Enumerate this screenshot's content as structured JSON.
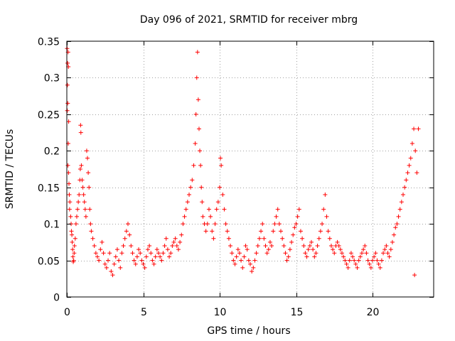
{
  "chart_data": {
    "type": "scatter",
    "marker": "+",
    "title": "Day 096 of 2021, SRMTID for receiver mbrg",
    "xlabel": "GPS time / hours",
    "ylabel": "SRMTID / TECUs",
    "xlim": [
      0,
      24
    ],
    "ylim": [
      0,
      0.35
    ],
    "grid": true,
    "xticks": [
      0,
      5,
      10,
      15,
      20
    ],
    "xtick_labels": [
      "0",
      "5",
      "10",
      "15",
      "20"
    ],
    "yticks": [
      0,
      0.05,
      0.1,
      0.15,
      0.2,
      0.25,
      0.3,
      0.35
    ],
    "ytick_labels": [
      "0",
      "0.05",
      "0.1",
      "0.15",
      "0.2",
      "0.25",
      "0.3",
      "0.35"
    ],
    "series_color": "#ff0000",
    "series": [
      {
        "name": "SRMTID",
        "points": [
          [
            0.02,
            0.34
          ],
          [
            0.05,
            0.32
          ],
          [
            0.08,
            0.335
          ],
          [
            0.1,
            0.315
          ],
          [
            0.04,
            0.29
          ],
          [
            0.06,
            0.265
          ],
          [
            0.03,
            0.255
          ],
          [
            0.12,
            0.24
          ],
          [
            0.09,
            0.21
          ],
          [
            0.07,
            0.18
          ],
          [
            0.11,
            0.17
          ],
          [
            0.14,
            0.155
          ],
          [
            0.16,
            0.14
          ],
          [
            0.2,
            0.13
          ],
          [
            0.18,
            0.12
          ],
          [
            0.25,
            0.11
          ],
          [
            0.28,
            0.1
          ],
          [
            0.3,
            0.09
          ],
          [
            0.33,
            0.085
          ],
          [
            0.35,
            0.075
          ],
          [
            0.38,
            0.065
          ],
          [
            0.4,
            0.055
          ],
          [
            0.42,
            0.048
          ],
          [
            0.45,
            0.05
          ],
          [
            0.48,
            0.06
          ],
          [
            0.5,
            0.07
          ],
          [
            0.55,
            0.08
          ],
          [
            0.6,
            0.1
          ],
          [
            0.65,
            0.11
          ],
          [
            0.7,
            0.12
          ],
          [
            0.75,
            0.13
          ],
          [
            0.8,
            0.14
          ],
          [
            0.85,
            0.16
          ],
          [
            0.88,
            0.175
          ],
          [
            0.9,
            0.235
          ],
          [
            0.92,
            0.225
          ],
          [
            0.95,
            0.18
          ],
          [
            1.0,
            0.16
          ],
          [
            1.05,
            0.15
          ],
          [
            1.1,
            0.14
          ],
          [
            1.15,
            0.13
          ],
          [
            1.2,
            0.12
          ],
          [
            1.25,
            0.11
          ],
          [
            1.3,
            0.2
          ],
          [
            1.35,
            0.19
          ],
          [
            1.4,
            0.17
          ],
          [
            1.45,
            0.15
          ],
          [
            1.5,
            0.12
          ],
          [
            1.55,
            0.1
          ],
          [
            1.6,
            0.09
          ],
          [
            1.7,
            0.08
          ],
          [
            1.8,
            0.07
          ],
          [
            1.9,
            0.06
          ],
          [
            2.0,
            0.055
          ],
          [
            2.1,
            0.05
          ],
          [
            2.2,
            0.065
          ],
          [
            2.3,
            0.075
          ],
          [
            2.4,
            0.06
          ],
          [
            2.5,
            0.045
          ],
          [
            2.6,
            0.04
          ],
          [
            2.7,
            0.05
          ],
          [
            2.8,
            0.06
          ],
          [
            2.9,
            0.035
          ],
          [
            3.0,
            0.03
          ],
          [
            3.1,
            0.045
          ],
          [
            3.2,
            0.055
          ],
          [
            3.3,
            0.065
          ],
          [
            3.4,
            0.05
          ],
          [
            3.5,
            0.04
          ],
          [
            3.6,
            0.06
          ],
          [
            3.7,
            0.07
          ],
          [
            3.8,
            0.08
          ],
          [
            3.9,
            0.09
          ],
          [
            4.0,
            0.1
          ],
          [
            4.1,
            0.085
          ],
          [
            4.2,
            0.07
          ],
          [
            4.3,
            0.06
          ],
          [
            4.4,
            0.05
          ],
          [
            4.5,
            0.045
          ],
          [
            4.6,
            0.055
          ],
          [
            4.7,
            0.065
          ],
          [
            4.8,
            0.06
          ],
          [
            4.9,
            0.05
          ],
          [
            5.0,
            0.045
          ],
          [
            5.1,
            0.04
          ],
          [
            5.2,
            0.055
          ],
          [
            5.3,
            0.065
          ],
          [
            5.4,
            0.07
          ],
          [
            5.5,
            0.06
          ],
          [
            5.6,
            0.05
          ],
          [
            5.7,
            0.045
          ],
          [
            5.8,
            0.055
          ],
          [
            5.9,
            0.065
          ],
          [
            6.0,
            0.06
          ],
          [
            6.1,
            0.055
          ],
          [
            6.2,
            0.05
          ],
          [
            6.3,
            0.06
          ],
          [
            6.4,
            0.07
          ],
          [
            6.5,
            0.08
          ],
          [
            6.6,
            0.065
          ],
          [
            6.7,
            0.055
          ],
          [
            6.8,
            0.06
          ],
          [
            6.9,
            0.07
          ],
          [
            7.0,
            0.075
          ],
          [
            7.1,
            0.08
          ],
          [
            7.2,
            0.07
          ],
          [
            7.3,
            0.065
          ],
          [
            7.4,
            0.075
          ],
          [
            7.5,
            0.085
          ],
          [
            7.6,
            0.1
          ],
          [
            7.7,
            0.11
          ],
          [
            7.8,
            0.12
          ],
          [
            7.9,
            0.13
          ],
          [
            8.0,
            0.14
          ],
          [
            8.1,
            0.15
          ],
          [
            8.2,
            0.16
          ],
          [
            8.3,
            0.18
          ],
          [
            8.4,
            0.21
          ],
          [
            8.45,
            0.25
          ],
          [
            8.5,
            0.3
          ],
          [
            8.55,
            0.335
          ],
          [
            8.6,
            0.27
          ],
          [
            8.65,
            0.23
          ],
          [
            8.7,
            0.2
          ],
          [
            8.75,
            0.18
          ],
          [
            8.8,
            0.15
          ],
          [
            8.85,
            0.13
          ],
          [
            8.9,
            0.11
          ],
          [
            9.0,
            0.1
          ],
          [
            9.1,
            0.09
          ],
          [
            9.2,
            0.1
          ],
          [
            9.3,
            0.12
          ],
          [
            9.4,
            0.11
          ],
          [
            9.5,
            0.09
          ],
          [
            9.6,
            0.08
          ],
          [
            9.7,
            0.1
          ],
          [
            9.8,
            0.12
          ],
          [
            9.9,
            0.13
          ],
          [
            10.0,
            0.15
          ],
          [
            10.05,
            0.19
          ],
          [
            10.1,
            0.18
          ],
          [
            10.2,
            0.14
          ],
          [
            10.3,
            0.12
          ],
          [
            10.4,
            0.1
          ],
          [
            10.5,
            0.09
          ],
          [
            10.6,
            0.08
          ],
          [
            10.7,
            0.07
          ],
          [
            10.8,
            0.06
          ],
          [
            10.9,
            0.05
          ],
          [
            11.0,
            0.045
          ],
          [
            11.1,
            0.055
          ],
          [
            11.2,
            0.065
          ],
          [
            11.3,
            0.06
          ],
          [
            11.4,
            0.05
          ],
          [
            11.5,
            0.04
          ],
          [
            11.6,
            0.055
          ],
          [
            11.7,
            0.07
          ],
          [
            11.8,
            0.065
          ],
          [
            11.9,
            0.05
          ],
          [
            12.0,
            0.045
          ],
          [
            12.1,
            0.035
          ],
          [
            12.2,
            0.04
          ],
          [
            12.3,
            0.05
          ],
          [
            12.4,
            0.06
          ],
          [
            12.5,
            0.07
          ],
          [
            12.6,
            0.08
          ],
          [
            12.7,
            0.09
          ],
          [
            12.8,
            0.1
          ],
          [
            12.9,
            0.08
          ],
          [
            13.0,
            0.07
          ],
          [
            13.1,
            0.06
          ],
          [
            13.2,
            0.065
          ],
          [
            13.3,
            0.075
          ],
          [
            13.4,
            0.07
          ],
          [
            13.5,
            0.09
          ],
          [
            13.6,
            0.1
          ],
          [
            13.7,
            0.11
          ],
          [
            13.8,
            0.12
          ],
          [
            13.9,
            0.1
          ],
          [
            14.0,
            0.09
          ],
          [
            14.1,
            0.08
          ],
          [
            14.2,
            0.07
          ],
          [
            14.3,
            0.06
          ],
          [
            14.4,
            0.05
          ],
          [
            14.5,
            0.055
          ],
          [
            14.6,
            0.065
          ],
          [
            14.7,
            0.075
          ],
          [
            14.8,
            0.085
          ],
          [
            14.9,
            0.095
          ],
          [
            15.0,
            0.1
          ],
          [
            15.1,
            0.11
          ],
          [
            15.2,
            0.12
          ],
          [
            15.3,
            0.09
          ],
          [
            15.4,
            0.08
          ],
          [
            15.5,
            0.07
          ],
          [
            15.6,
            0.06
          ],
          [
            15.7,
            0.055
          ],
          [
            15.8,
            0.065
          ],
          [
            15.9,
            0.07
          ],
          [
            16.0,
            0.075
          ],
          [
            16.1,
            0.065
          ],
          [
            16.2,
            0.055
          ],
          [
            16.3,
            0.06
          ],
          [
            16.4,
            0.07
          ],
          [
            16.5,
            0.08
          ],
          [
            16.6,
            0.09
          ],
          [
            16.7,
            0.1
          ],
          [
            16.8,
            0.12
          ],
          [
            16.9,
            0.14
          ],
          [
            17.0,
            0.11
          ],
          [
            17.1,
            0.09
          ],
          [
            17.2,
            0.08
          ],
          [
            17.3,
            0.07
          ],
          [
            17.4,
            0.065
          ],
          [
            17.5,
            0.06
          ],
          [
            17.6,
            0.07
          ],
          [
            17.7,
            0.075
          ],
          [
            17.8,
            0.07
          ],
          [
            17.9,
            0.065
          ],
          [
            18.0,
            0.06
          ],
          [
            18.1,
            0.055
          ],
          [
            18.2,
            0.05
          ],
          [
            18.3,
            0.045
          ],
          [
            18.4,
            0.04
          ],
          [
            18.5,
            0.05
          ],
          [
            18.6,
            0.06
          ],
          [
            18.7,
            0.055
          ],
          [
            18.8,
            0.05
          ],
          [
            18.9,
            0.045
          ],
          [
            19.0,
            0.04
          ],
          [
            19.1,
            0.05
          ],
          [
            19.2,
            0.055
          ],
          [
            19.3,
            0.06
          ],
          [
            19.4,
            0.065
          ],
          [
            19.5,
            0.07
          ],
          [
            19.6,
            0.06
          ],
          [
            19.7,
            0.05
          ],
          [
            19.8,
            0.045
          ],
          [
            19.9,
            0.04
          ],
          [
            20.0,
            0.05
          ],
          [
            20.1,
            0.055
          ],
          [
            20.2,
            0.06
          ],
          [
            20.3,
            0.05
          ],
          [
            20.4,
            0.045
          ],
          [
            20.5,
            0.04
          ],
          [
            20.6,
            0.05
          ],
          [
            20.7,
            0.06
          ],
          [
            20.8,
            0.065
          ],
          [
            20.9,
            0.07
          ],
          [
            21.0,
            0.06
          ],
          [
            21.1,
            0.055
          ],
          [
            21.2,
            0.065
          ],
          [
            21.3,
            0.075
          ],
          [
            21.4,
            0.085
          ],
          [
            21.5,
            0.095
          ],
          [
            21.6,
            0.1
          ],
          [
            21.7,
            0.11
          ],
          [
            21.8,
            0.12
          ],
          [
            21.9,
            0.13
          ],
          [
            22.0,
            0.14
          ],
          [
            22.1,
            0.15
          ],
          [
            22.2,
            0.16
          ],
          [
            22.3,
            0.17
          ],
          [
            22.4,
            0.18
          ],
          [
            22.5,
            0.19
          ],
          [
            22.6,
            0.21
          ],
          [
            22.7,
            0.23
          ],
          [
            22.8,
            0.2
          ],
          [
            22.9,
            0.17
          ],
          [
            23.0,
            0.23
          ],
          [
            22.75,
            0.03
          ]
        ]
      }
    ]
  }
}
